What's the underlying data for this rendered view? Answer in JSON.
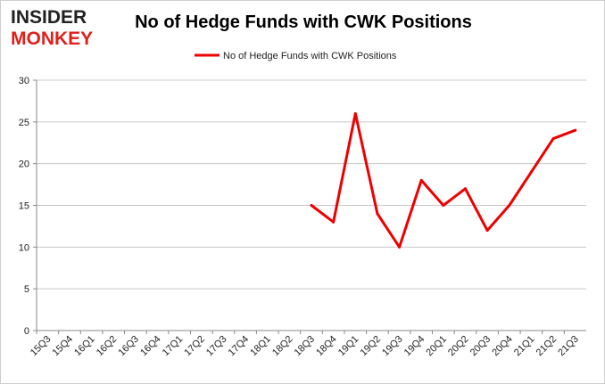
{
  "logo": {
    "line1": "INSIDER",
    "line2": "MONKEY"
  },
  "chart_data": {
    "type": "line",
    "title": "No of Hedge Funds with CWK Positions",
    "xlabel": "",
    "ylabel": "",
    "categories": [
      "15Q3",
      "15Q4",
      "16Q1",
      "16Q2",
      "16Q3",
      "16Q4",
      "17Q1",
      "17Q2",
      "17Q3",
      "17Q4",
      "18Q1",
      "18Q2",
      "18Q3",
      "18Q4",
      "19Q1",
      "19Q2",
      "19Q3",
      "19Q4",
      "20Q1",
      "20Q2",
      "20Q3",
      "20Q4",
      "21Q1",
      "21Q2",
      "21Q3"
    ],
    "series": [
      {
        "name": "No of Hedge Funds with CWK Positions",
        "color": "#ee0000",
        "values": [
          null,
          null,
          null,
          null,
          null,
          null,
          null,
          null,
          null,
          null,
          null,
          null,
          15,
          13,
          26,
          14,
          10,
          18,
          15,
          17,
          12,
          15,
          19,
          23,
          24
        ]
      }
    ],
    "ylim": [
      0,
      30
    ],
    "yticks": [
      0,
      5,
      10,
      15,
      20,
      25,
      30
    ],
    "grid": true,
    "legend": "top-center"
  }
}
